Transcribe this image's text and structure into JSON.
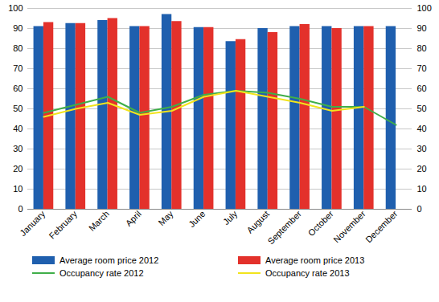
{
  "chart_data": {
    "type": "bar",
    "categories": [
      "January",
      "February",
      "March",
      "April",
      "May",
      "June",
      "July",
      "August",
      "September",
      "October",
      "November",
      "December"
    ],
    "ylim": [
      0,
      100
    ],
    "yticks": [
      0,
      10,
      20,
      30,
      40,
      50,
      60,
      70,
      80,
      90,
      100
    ],
    "grid": true,
    "legend": "bottom",
    "series": [
      {
        "name": "Average room price 2012",
        "type": "bar",
        "color": "#1f5fae",
        "values": [
          91,
          92.5,
          94,
          91,
          97,
          90.5,
          83.5,
          90,
          91,
          91,
          91,
          91
        ]
      },
      {
        "name": "Average room price 2013",
        "type": "bar",
        "color": "#e3312b",
        "values": [
          93,
          92.5,
          95,
          91,
          93.5,
          90.5,
          84.5,
          88,
          92,
          90,
          91,
          null
        ]
      },
      {
        "name": "Occupancy rate 2012",
        "type": "line",
        "color": "#3fae49",
        "values": [
          48,
          52,
          56,
          48,
          51,
          57,
          59,
          58,
          55,
          51,
          51,
          42
        ]
      },
      {
        "name": "Occupancy rate 2013",
        "type": "line",
        "color": "#f2e41c",
        "values": [
          46,
          50,
          53,
          47,
          49,
          56,
          59,
          56,
          53,
          49,
          51,
          null
        ]
      }
    ]
  }
}
